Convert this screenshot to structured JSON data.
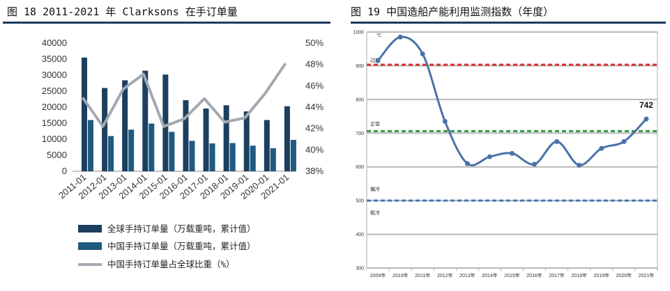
{
  "figures": {
    "left_title": "图 18 2011-2021 年 Clarksons 在手订单量",
    "right_title": "图 19 中国造船产能利用监测指数（年度）"
  },
  "chart_data": [
    {
      "type": "bar",
      "categories": [
        "2011-01",
        "2012-01",
        "2013-01",
        "2014-01",
        "2015-01",
        "2016-01",
        "2017-01",
        "2018-01",
        "2019-01",
        "2020-01",
        "2021-01"
      ],
      "series": [
        {
          "name": "全球手持订单量（万载重吨，累计值）",
          "type": "bar",
          "axis": "left",
          "color": "#1c3f5f",
          "values": [
            35500,
            26000,
            28400,
            31400,
            30200,
            22200,
            19600,
            20600,
            18700,
            16000,
            20300
          ]
        },
        {
          "name": "中国手持订单量（万载重吨，累计值）",
          "type": "bar",
          "axis": "left",
          "color": "#1f5a80",
          "values": [
            16000,
            11000,
            13000,
            14900,
            12300,
            9500,
            8700,
            8800,
            8000,
            7200,
            9800
          ]
        },
        {
          "name": "中国手持订单量占全球比重（%）",
          "type": "line",
          "axis": "right",
          "color": "#a3a9b1",
          "values": [
            44.9,
            42.2,
            45.7,
            47.1,
            42.2,
            42.9,
            44.8,
            42.6,
            43.0,
            45.3,
            48.1
          ]
        }
      ],
      "y_left": {
        "min": 0,
        "max": 40000,
        "ticks": [
          0,
          5000,
          10000,
          15000,
          20000,
          25000,
          30000,
          35000,
          40000
        ]
      },
      "y_right": {
        "min": 38,
        "max": 50,
        "ticks": [
          "38%",
          "40%",
          "42%",
          "44%",
          "46%",
          "48%",
          "50%"
        ],
        "tick_values": [
          38,
          40,
          42,
          44,
          46,
          48,
          50
        ]
      },
      "legend_placement": "bottom"
    },
    {
      "type": "line",
      "x": [
        "2009年",
        "2010年",
        "2011年",
        "2012年",
        "2013年",
        "2014年",
        "2015年",
        "2016年",
        "2017年",
        "2018年",
        "2019年",
        "2020年",
        "2021年"
      ],
      "series": [
        {
          "values": [
            915,
            985,
            935,
            735,
            610,
            630,
            640,
            608,
            675,
            605,
            655,
            675,
            742
          ],
          "color": "#4a72a8"
        }
      ],
      "y_unit": "℃",
      "ylim": [
        300,
        1000
      ],
      "y_ticks": [
        300,
        400,
        500,
        600,
        700,
        800,
        900,
        1000
      ],
      "reference_lines": [
        {
          "label": "过热",
          "value": 903,
          "color": "#d83030"
        },
        {
          "label": "正常",
          "value": 706,
          "color": "#2f9a45"
        },
        {
          "label": "偏冷",
          "value": 500,
          "color": "#3f78b5"
        }
      ],
      "zone_labels": [
        "过热",
        "正常",
        "偏冷",
        "极冷"
      ],
      "annotation": "742",
      "grid": true
    }
  ]
}
